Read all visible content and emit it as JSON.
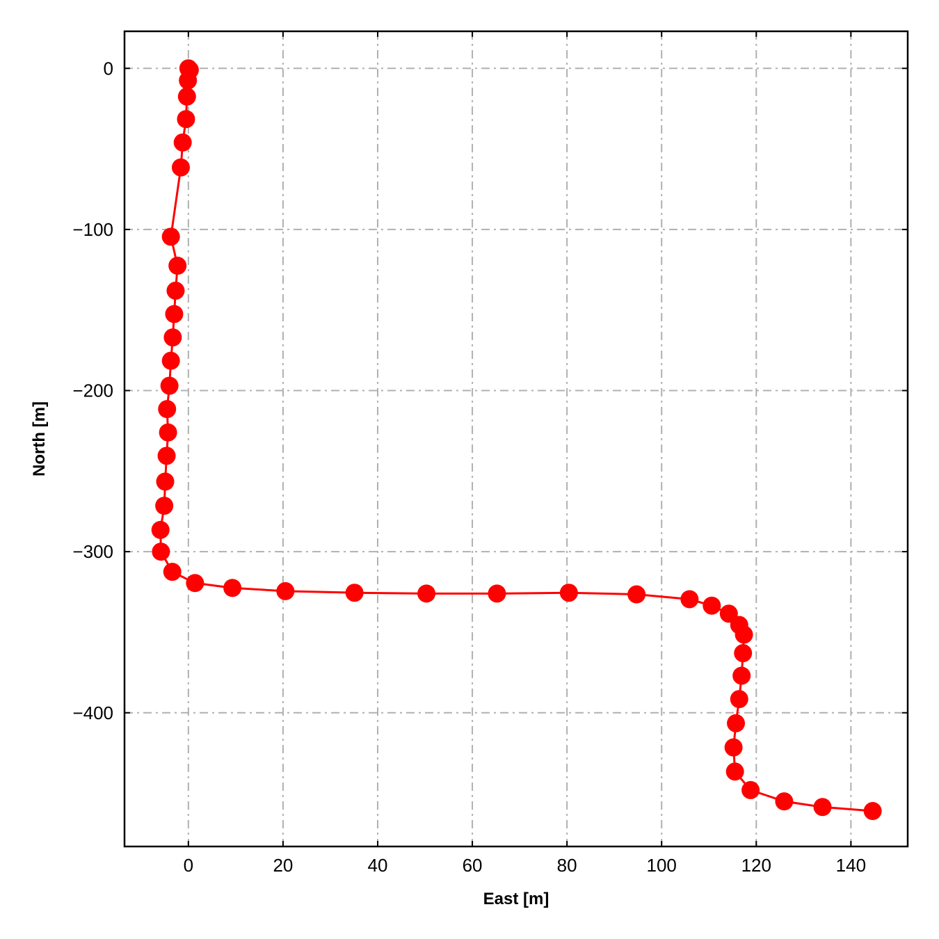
{
  "chart_data": {
    "type": "line",
    "title": "",
    "xlabel": "East [m]",
    "ylabel": "North [m]",
    "xlim": [
      -13.5,
      152
    ],
    "ylim": [
      -483,
      23
    ],
    "xticks": [
      0,
      20,
      40,
      60,
      80,
      100,
      120,
      140
    ],
    "yticks": [
      0,
      -100,
      -200,
      -300,
      -400
    ],
    "xtick_labels": [
      "0",
      "20",
      "40",
      "60",
      "80",
      "100",
      "120",
      "140"
    ],
    "ytick_labels": [
      "0",
      "−100",
      "−200",
      "−300",
      "−400"
    ],
    "grid": true,
    "grid_style": "dash-dot",
    "series": [
      {
        "color": "#ff0000",
        "marker": "circle",
        "x": [
          0.0,
          0.3,
          -0.1,
          -0.3,
          -0.5,
          -1.2,
          -1.6,
          -3.7,
          -2.3,
          -2.7,
          -3.0,
          -3.3,
          -3.7,
          -4.0,
          -4.5,
          -4.3,
          -4.6,
          -4.9,
          -5.1,
          -5.9,
          -5.8,
          -3.4,
          1.4,
          9.3,
          20.5,
          35.1,
          50.3,
          65.2,
          80.4,
          94.7,
          105.9,
          110.6,
          114.2,
          116.4,
          117.4,
          117.2,
          116.9,
          116.4,
          115.7,
          115.2,
          115.5,
          118.8,
          125.9,
          134.0,
          144.6
        ],
        "y": [
          0.0,
          -1.0,
          -7.5,
          -17.5,
          -31.5,
          -46.0,
          -61.5,
          -104.5,
          -122.5,
          -138.0,
          -152.5,
          -167.0,
          -181.5,
          -197.0,
          -211.5,
          -226.0,
          -240.5,
          -256.5,
          -271.5,
          -286.5,
          -300.0,
          -312.5,
          -319.5,
          -322.5,
          -324.5,
          -325.5,
          -326.0,
          -326.0,
          -325.5,
          -326.5,
          -329.5,
          -333.5,
          -338.5,
          -345.5,
          -351.5,
          -363.0,
          -377.0,
          -391.5,
          -406.5,
          -421.5,
          -436.5,
          -448.0,
          -455.0,
          -458.5,
          -461.0
        ]
      }
    ]
  }
}
